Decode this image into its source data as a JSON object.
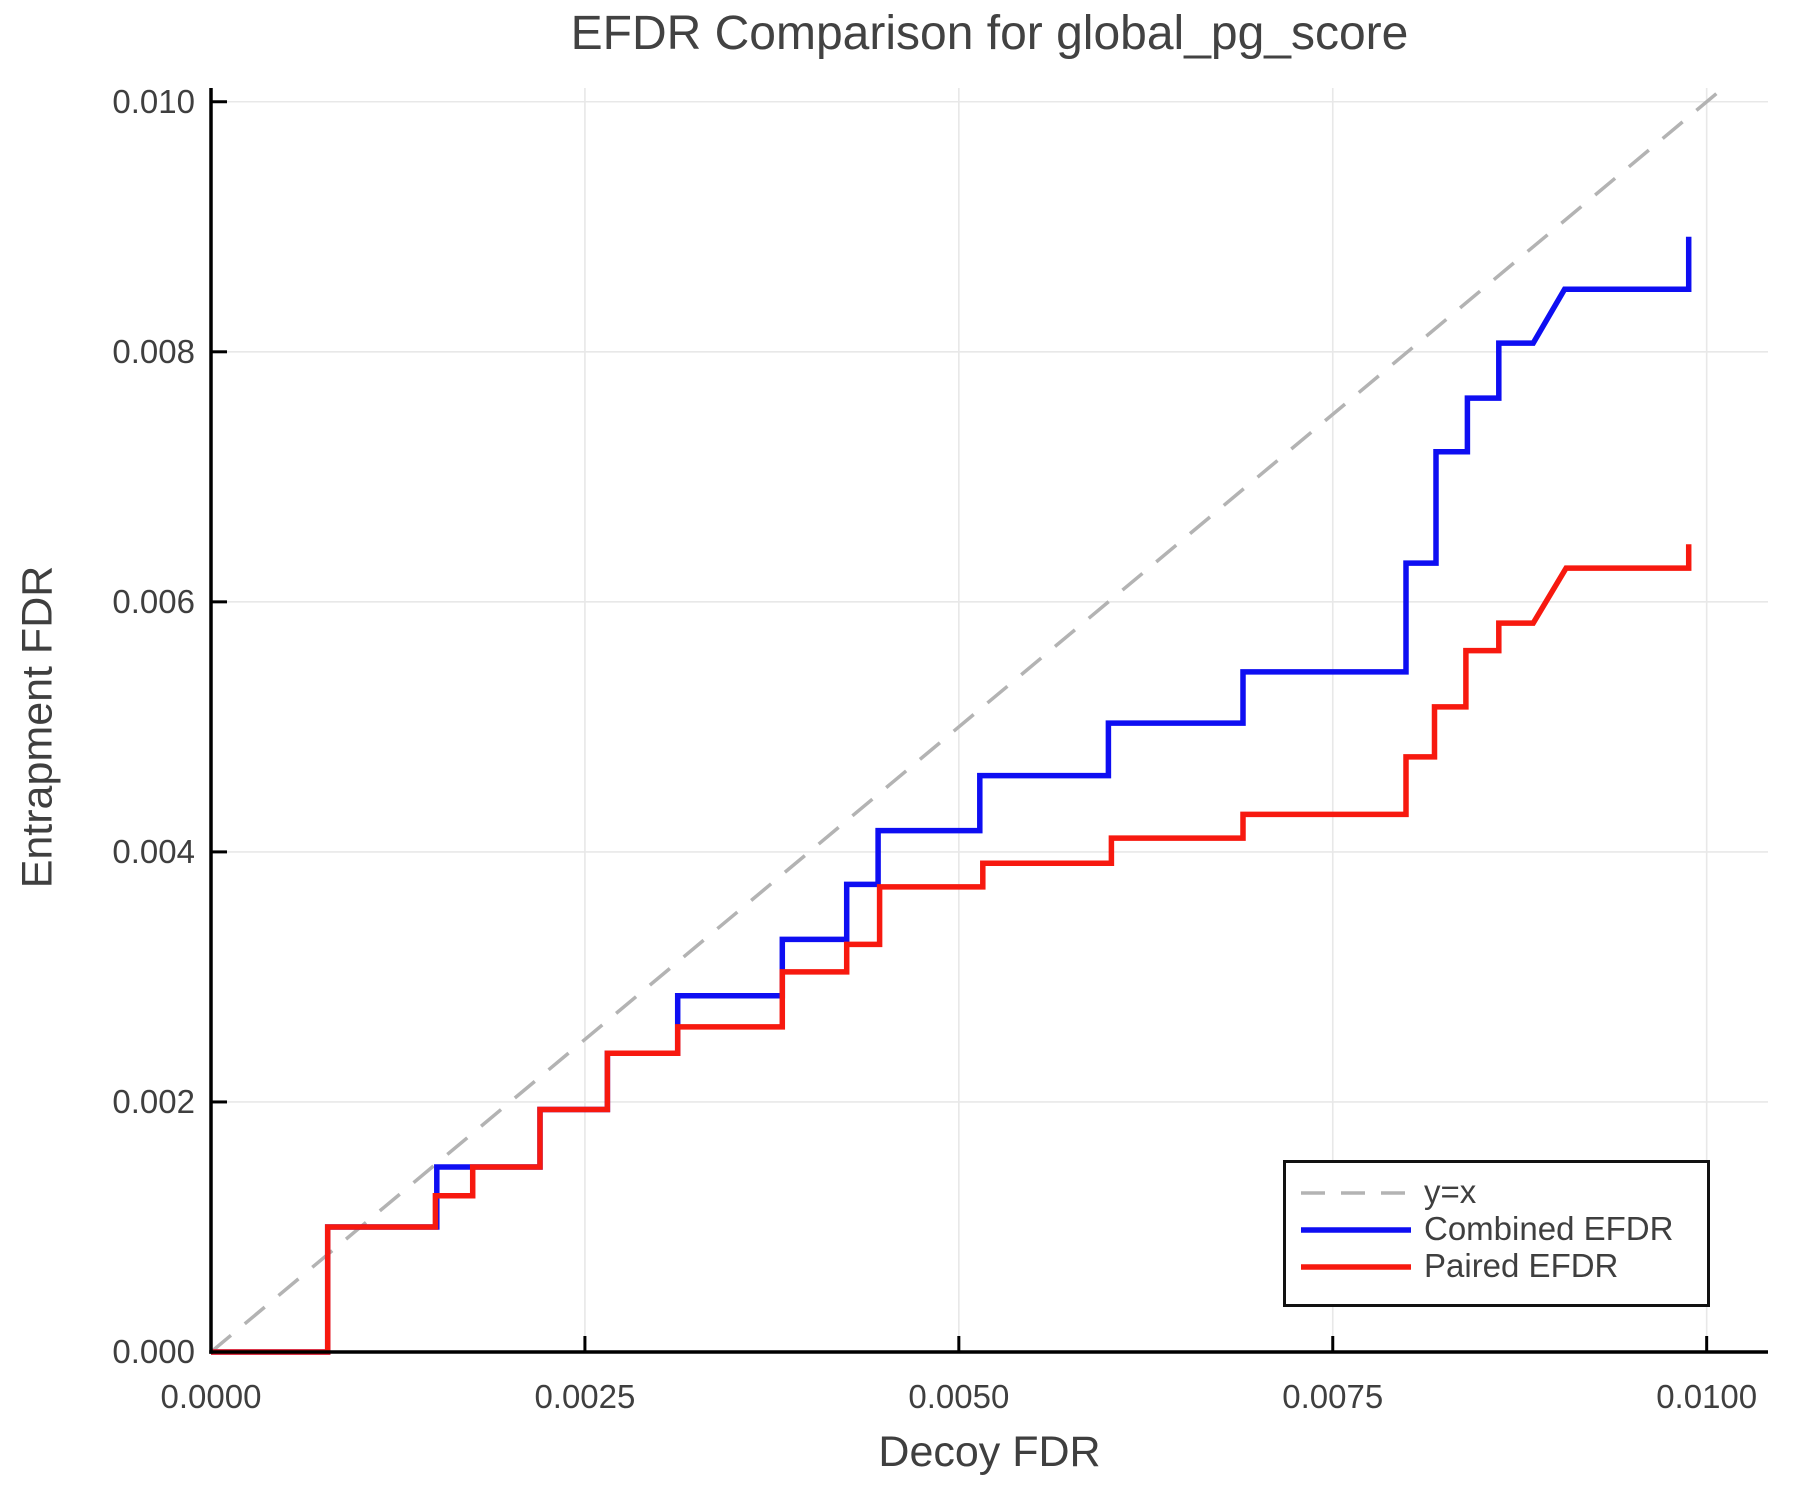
{
  "title": "EFDR Comparison for global_pg_score",
  "axes": {
    "xlabel": "Decoy FDR",
    "ylabel": "Entrapment FDR",
    "xticks": {
      "values": [
        0.0,
        0.0025,
        0.005,
        0.0075,
        0.01
      ],
      "labels": [
        "0.0000",
        "0.0025",
        "0.0050",
        "0.0075",
        "0.0100"
      ]
    },
    "yticks": {
      "values": [
        0.0,
        0.002,
        0.004,
        0.006,
        0.008,
        0.01
      ],
      "labels": [
        "0.000",
        "0.002",
        "0.004",
        "0.006",
        "0.008",
        "0.010"
      ]
    }
  },
  "colors": {
    "identity": "#b3b3b3",
    "combined": "#0e0ef2",
    "paired": "#f7190f",
    "grid": "#e8e8e8",
    "spine": "#000000",
    "text": "#3f3f3f"
  },
  "chart_data": {
    "type": "line",
    "title": "EFDR Comparison for global_pg_score",
    "xlabel": "Decoy FDR",
    "ylabel": "Entrapment FDR",
    "xlim": [
      0.0,
      0.01041
    ],
    "ylim": [
      0.0,
      0.01011
    ],
    "grid": true,
    "legend_position": "bottom-right",
    "series": [
      {
        "name": "y=x",
        "style": "dashed",
        "color": "#b3b3b3",
        "points": [
          [
            0.0,
            0.0
          ],
          [
            0.0101,
            0.0101
          ]
        ]
      },
      {
        "name": "Combined EFDR",
        "style": "solid",
        "color": "#0e0ef2",
        "points": [
          [
            0.0,
            0.0
          ],
          [
            0.00078,
            0.0
          ],
          [
            0.00078,
            0.001
          ],
          [
            0.00151,
            0.001
          ],
          [
            0.00151,
            0.00148
          ],
          [
            0.0022,
            0.00148
          ],
          [
            0.0022,
            0.00194
          ],
          [
            0.00265,
            0.00194
          ],
          [
            0.00265,
            0.00239
          ],
          [
            0.00312,
            0.00239
          ],
          [
            0.00312,
            0.00285
          ],
          [
            0.00382,
            0.00285
          ],
          [
            0.00382,
            0.0033
          ],
          [
            0.00425,
            0.0033
          ],
          [
            0.00425,
            0.00374
          ],
          [
            0.00446,
            0.00374
          ],
          [
            0.00446,
            0.00417
          ],
          [
            0.00514,
            0.00417
          ],
          [
            0.00514,
            0.00461
          ],
          [
            0.006,
            0.00461
          ],
          [
            0.006,
            0.00503
          ],
          [
            0.0069,
            0.00503
          ],
          [
            0.0069,
            0.00544
          ],
          [
            0.00799,
            0.00544
          ],
          [
            0.00799,
            0.00631
          ],
          [
            0.00819,
            0.00631
          ],
          [
            0.00819,
            0.0072
          ],
          [
            0.0084,
            0.0072
          ],
          [
            0.0084,
            0.00763
          ],
          [
            0.00861,
            0.00763
          ],
          [
            0.00861,
            0.00807
          ],
          [
            0.00884,
            0.00807
          ],
          [
            0.00905,
            0.0085
          ],
          [
            0.00988,
            0.0085
          ],
          [
            0.00988,
            0.00892
          ]
        ]
      },
      {
        "name": "Paired EFDR",
        "style": "solid",
        "color": "#f7190f",
        "points": [
          [
            0.0,
            0.0
          ],
          [
            0.00078,
            0.0
          ],
          [
            0.00078,
            0.001
          ],
          [
            0.0015,
            0.001
          ],
          [
            0.0015,
            0.00125
          ],
          [
            0.00175,
            0.00125
          ],
          [
            0.00175,
            0.00148
          ],
          [
            0.0022,
            0.00148
          ],
          [
            0.0022,
            0.00194
          ],
          [
            0.00265,
            0.00194
          ],
          [
            0.00265,
            0.00239
          ],
          [
            0.00312,
            0.00239
          ],
          [
            0.00312,
            0.0026
          ],
          [
            0.00382,
            0.0026
          ],
          [
            0.00382,
            0.00304
          ],
          [
            0.00425,
            0.00304
          ],
          [
            0.00425,
            0.00326
          ],
          [
            0.00447,
            0.00326
          ],
          [
            0.00447,
            0.00372
          ],
          [
            0.00516,
            0.00372
          ],
          [
            0.00516,
            0.00391
          ],
          [
            0.00602,
            0.00391
          ],
          [
            0.00602,
            0.00411
          ],
          [
            0.0069,
            0.00411
          ],
          [
            0.0069,
            0.0043
          ],
          [
            0.00799,
            0.0043
          ],
          [
            0.00799,
            0.00476
          ],
          [
            0.00818,
            0.00476
          ],
          [
            0.00818,
            0.00516
          ],
          [
            0.00839,
            0.00516
          ],
          [
            0.00839,
            0.00561
          ],
          [
            0.00861,
            0.00561
          ],
          [
            0.00861,
            0.00583
          ],
          [
            0.00884,
            0.00583
          ],
          [
            0.00906,
            0.00627
          ],
          [
            0.00988,
            0.00627
          ],
          [
            0.00988,
            0.00646
          ]
        ]
      }
    ]
  },
  "legend": {
    "items": [
      {
        "label": "y=x",
        "style": "dashed",
        "color": "#b3b3b3"
      },
      {
        "label": "Combined EFDR",
        "style": "solid",
        "color": "#0e0ef2"
      },
      {
        "label": "Paired EFDR",
        "style": "solid",
        "color": "#f7190f"
      }
    ]
  }
}
